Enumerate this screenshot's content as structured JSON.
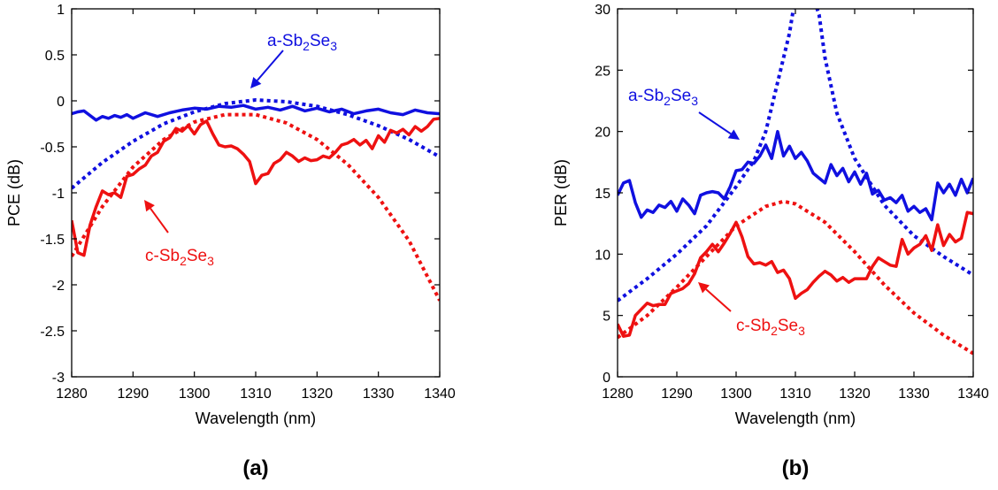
{
  "colors": {
    "blue": "#1010e0",
    "red": "#ee1111",
    "axis": "#000000"
  },
  "chart_data": [
    {
      "type": "line",
      "panel_label": "(a)",
      "xlabel": "Wavelength (nm)",
      "ylabel": "PCE (dB)",
      "xlim": [
        1280,
        1340
      ],
      "ylim": [
        -3,
        1
      ],
      "xticks": [
        1280,
        1290,
        1300,
        1310,
        1320,
        1330,
        1340
      ],
      "yticks": [
        1,
        0.5,
        0,
        -0.5,
        -1,
        -1.5,
        -2,
        -2.5,
        -3
      ],
      "ytick_labels": [
        "1",
        "0.5",
        "0",
        "-0.5",
        "-1",
        "-1.5",
        "-2",
        "-2.5",
        "-3"
      ],
      "grid": false,
      "series": [
        {
          "color": "blue",
          "style": "solid",
          "x": [
            1280,
            1281,
            1282,
            1283,
            1284,
            1285,
            1286,
            1287,
            1288,
            1289,
            1290,
            1292,
            1294,
            1296,
            1298,
            1300,
            1302,
            1304,
            1306,
            1308,
            1310,
            1312,
            1314,
            1316,
            1318,
            1320,
            1322,
            1324,
            1326,
            1328,
            1330,
            1332,
            1334,
            1336,
            1338,
            1340
          ],
          "y": [
            -0.14,
            -0.12,
            -0.11,
            -0.16,
            -0.21,
            -0.17,
            -0.19,
            -0.16,
            -0.18,
            -0.15,
            -0.19,
            -0.13,
            -0.17,
            -0.13,
            -0.1,
            -0.08,
            -0.09,
            -0.06,
            -0.07,
            -0.05,
            -0.09,
            -0.07,
            -0.1,
            -0.06,
            -0.11,
            -0.08,
            -0.12,
            -0.09,
            -0.14,
            -0.11,
            -0.09,
            -0.13,
            -0.15,
            -0.1,
            -0.13,
            -0.14
          ]
        },
        {
          "color": "blue",
          "style": "dotted",
          "x": [
            1280,
            1285,
            1290,
            1295,
            1300,
            1305,
            1310,
            1315,
            1320,
            1325,
            1330,
            1335,
            1340
          ],
          "y": [
            -0.95,
            -0.67,
            -0.44,
            -0.25,
            -0.12,
            -0.03,
            0.01,
            -0.01,
            -0.06,
            -0.15,
            -0.27,
            -0.42,
            -0.61
          ]
        },
        {
          "color": "red",
          "style": "solid",
          "x": [
            1280,
            1281,
            1282,
            1283,
            1284,
            1285,
            1286,
            1287,
            1288,
            1289,
            1290,
            1291,
            1292,
            1293,
            1294,
            1295,
            1296,
            1297,
            1298,
            1299,
            1300,
            1301,
            1302,
            1303,
            1304,
            1305,
            1306,
            1307,
            1308,
            1309,
            1310,
            1311,
            1312,
            1313,
            1314,
            1315,
            1316,
            1317,
            1318,
            1319,
            1320,
            1321,
            1322,
            1323,
            1324,
            1325,
            1326,
            1327,
            1328,
            1329,
            1330,
            1331,
            1332,
            1333,
            1334,
            1335,
            1336,
            1337,
            1338,
            1339,
            1340
          ],
          "y": [
            -1.3,
            -1.65,
            -1.68,
            -1.35,
            -1.15,
            -0.98,
            -1.02,
            -1.0,
            -1.05,
            -0.82,
            -0.8,
            -0.74,
            -0.7,
            -0.6,
            -0.56,
            -0.44,
            -0.4,
            -0.3,
            -0.33,
            -0.27,
            -0.36,
            -0.26,
            -0.22,
            -0.36,
            -0.48,
            -0.5,
            -0.49,
            -0.52,
            -0.58,
            -0.66,
            -0.9,
            -0.81,
            -0.79,
            -0.68,
            -0.64,
            -0.56,
            -0.6,
            -0.66,
            -0.62,
            -0.65,
            -0.64,
            -0.6,
            -0.62,
            -0.56,
            -0.48,
            -0.46,
            -0.42,
            -0.48,
            -0.43,
            -0.52,
            -0.38,
            -0.45,
            -0.32,
            -0.35,
            -0.31,
            -0.37,
            -0.28,
            -0.33,
            -0.28,
            -0.2,
            -0.19
          ]
        },
        {
          "color": "red",
          "style": "dotted",
          "x": [
            1280,
            1285,
            1290,
            1295,
            1300,
            1305,
            1310,
            1315,
            1320,
            1325,
            1330,
            1335,
            1340
          ],
          "y": [
            -1.69,
            -1.15,
            -0.72,
            -0.42,
            -0.23,
            -0.15,
            -0.15,
            -0.24,
            -0.42,
            -0.69,
            -1.05,
            -1.52,
            -2.17
          ]
        }
      ],
      "annotations": [
        {
          "prefix": "a-Sb",
          "sub1": "2",
          "mid": "Se",
          "sub2": "3",
          "color": "blue"
        },
        {
          "prefix": "c-Sb",
          "sub1": "2",
          "mid": "Se",
          "sub2": "3",
          "color": "red"
        }
      ]
    },
    {
      "type": "line",
      "panel_label": "(b)",
      "xlabel": "Wavelength (nm)",
      "ylabel": "PER (dB)",
      "xlim": [
        1280,
        1340
      ],
      "ylim": [
        0,
        30
      ],
      "xticks": [
        1280,
        1290,
        1300,
        1310,
        1320,
        1330,
        1340
      ],
      "yticks": [
        0,
        5,
        10,
        15,
        20,
        25,
        30
      ],
      "ytick_labels": [
        "0",
        "5",
        "10",
        "15",
        "20",
        "25",
        "30"
      ],
      "grid": false,
      "series": [
        {
          "color": "blue",
          "style": "solid",
          "x": [
            1280,
            1281,
            1282,
            1283,
            1284,
            1285,
            1286,
            1287,
            1288,
            1289,
            1290,
            1291,
            1292,
            1293,
            1294,
            1295,
            1296,
            1297,
            1298,
            1299,
            1300,
            1301,
            1302,
            1303,
            1304,
            1305,
            1306,
            1307,
            1308,
            1309,
            1310,
            1311,
            1312,
            1313,
            1314,
            1315,
            1316,
            1317,
            1318,
            1319,
            1320,
            1321,
            1322,
            1323,
            1324,
            1325,
            1326,
            1327,
            1328,
            1329,
            1330,
            1331,
            1332,
            1333,
            1334,
            1335,
            1336,
            1337,
            1338,
            1339,
            1340
          ],
          "y": [
            14.8,
            15.8,
            16.0,
            14.2,
            13.0,
            13.6,
            13.4,
            14.0,
            13.8,
            14.3,
            13.5,
            14.5,
            14.0,
            13.3,
            14.8,
            15.0,
            15.1,
            15.0,
            14.5,
            15.5,
            16.8,
            16.9,
            17.5,
            17.4,
            18.0,
            18.9,
            17.8,
            20.0,
            18.0,
            18.8,
            17.8,
            18.3,
            17.6,
            16.6,
            16.2,
            15.8,
            17.3,
            16.4,
            17.0,
            15.9,
            16.7,
            15.7,
            16.6,
            14.9,
            15.2,
            14.4,
            14.6,
            14.2,
            14.8,
            13.5,
            13.9,
            13.4,
            13.7,
            12.8,
            15.8,
            15.0,
            15.7,
            14.8,
            16.1,
            15.0,
            16.2
          ]
        },
        {
          "color": "blue",
          "style": "dotted",
          "x": [
            1280,
            1285,
            1290,
            1295,
            1300,
            1303,
            1305,
            1307,
            1309,
            1310,
            1311,
            1312,
            1313,
            1314,
            1315,
            1317,
            1320,
            1325,
            1330,
            1335,
            1340
          ],
          "y": [
            6.2,
            8.0,
            10.0,
            12.3,
            15.5,
            17.6,
            20.0,
            24.0,
            28.0,
            31.0,
            31.0,
            31.0,
            31.0,
            29.5,
            26.0,
            21.5,
            17.8,
            14.0,
            11.5,
            9.8,
            8.3
          ]
        },
        {
          "color": "red",
          "style": "solid",
          "x": [
            1280,
            1281,
            1282,
            1283,
            1284,
            1285,
            1286,
            1287,
            1288,
            1289,
            1290,
            1291,
            1292,
            1293,
            1294,
            1295,
            1296,
            1297,
            1298,
            1299,
            1300,
            1301,
            1302,
            1303,
            1304,
            1305,
            1306,
            1307,
            1308,
            1309,
            1310,
            1311,
            1312,
            1313,
            1314,
            1315,
            1316,
            1317,
            1318,
            1319,
            1320,
            1321,
            1322,
            1323,
            1324,
            1325,
            1326,
            1327,
            1328,
            1329,
            1330,
            1331,
            1332,
            1333,
            1334,
            1335,
            1336,
            1337,
            1338,
            1339,
            1340
          ],
          "y": [
            4.3,
            3.3,
            3.4,
            5.0,
            5.5,
            6.0,
            5.8,
            5.9,
            5.9,
            6.8,
            7.0,
            7.2,
            7.6,
            8.4,
            9.7,
            10.2,
            10.8,
            10.2,
            10.9,
            11.7,
            12.6,
            11.4,
            9.8,
            9.2,
            9.3,
            9.1,
            9.4,
            8.5,
            8.7,
            8.0,
            6.4,
            6.8,
            7.1,
            7.7,
            8.2,
            8.6,
            8.3,
            7.8,
            8.1,
            7.7,
            8.0,
            8.0,
            8.0,
            9.0,
            9.7,
            9.4,
            9.1,
            9.0,
            11.2,
            10.0,
            10.5,
            10.8,
            11.5,
            10.3,
            12.4,
            10.7,
            11.6,
            11.0,
            11.3,
            13.4,
            13.3
          ]
        },
        {
          "color": "red",
          "style": "dotted",
          "x": [
            1280,
            1285,
            1290,
            1295,
            1300,
            1305,
            1308,
            1310,
            1315,
            1320,
            1325,
            1330,
            1335,
            1340
          ],
          "y": [
            3.2,
            5.0,
            7.3,
            9.8,
            12.3,
            13.9,
            14.3,
            14.1,
            12.6,
            10.2,
            7.5,
            5.2,
            3.4,
            1.9
          ]
        }
      ],
      "annotations": [
        {
          "prefix": "a-Sb",
          "sub1": "2",
          "mid": "Se",
          "sub2": "3",
          "color": "blue"
        },
        {
          "prefix": "c-Sb",
          "sub1": "2",
          "mid": "Se",
          "sub2": "3",
          "color": "red"
        }
      ]
    }
  ]
}
